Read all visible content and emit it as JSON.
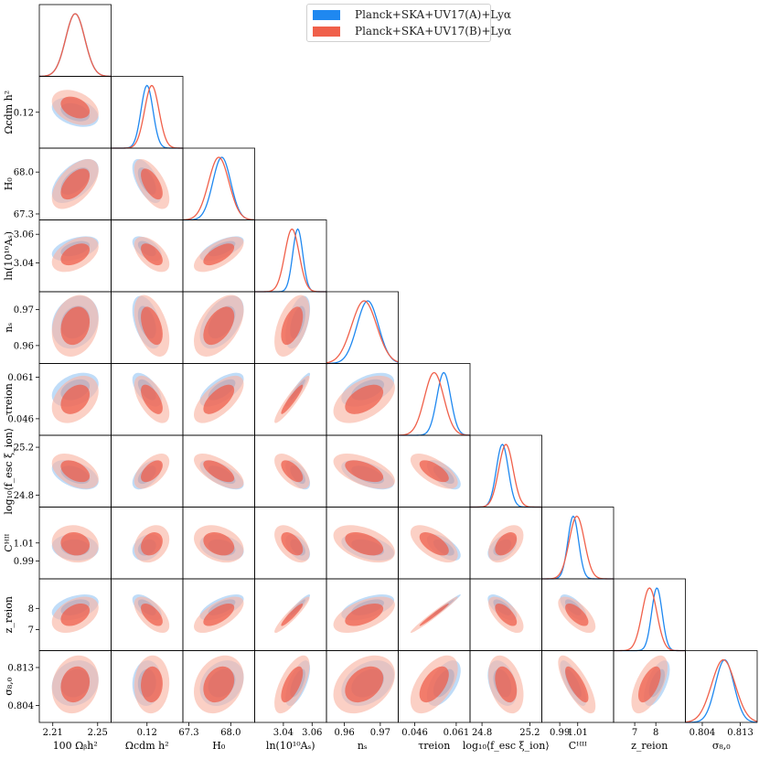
{
  "chart_data": {
    "type": "corner",
    "legend": {
      "placement": "top-center"
    },
    "series": [
      {
        "name": "Planck+SKA+UV17(A)+Lyα",
        "color": "#1f88f0",
        "fill_outer": "#a9d0f5",
        "fill_inner": "#5aa8f0"
      },
      {
        "name": "Planck+SKA+UV17(B)+Lyα",
        "color": "#f0604a",
        "fill_outer": "#f8b6a4",
        "fill_inner": "#ee5c48"
      }
    ],
    "parameters": [
      {
        "label": "100 Ωᵦh²",
        "axis_label": "100 Ω_b h²",
        "range": [
          2.198,
          2.262
        ],
        "ticks": [
          "2.21",
          "2.25"
        ],
        "tick_values": [
          2.21,
          2.25
        ],
        "mean": [
          2.23,
          2.23
        ],
        "sigma": [
          0.0085,
          0.0085
        ]
      },
      {
        "label": "Ωcdm h²",
        "axis_label": "Ω_cdm h²",
        "range": [
          0.1185,
          0.1215
        ],
        "ticks": [
          "0.12"
        ],
        "tick_values": [
          0.12
        ],
        "mean": [
          0.12,
          0.1202
        ],
        "sigma": [
          0.00025,
          0.0003
        ]
      },
      {
        "label": "H₀",
        "axis_label": "H_0",
        "range": [
          67.2,
          68.4
        ],
        "ticks": [
          "67.3",
          "68.0"
        ],
        "tick_values": [
          67.3,
          68.0
        ],
        "mean": [
          67.85,
          67.8
        ],
        "sigma": [
          0.15,
          0.17
        ]
      },
      {
        "label": "ln(10¹⁰Aₛ)",
        "axis_label": "ln(10^10 A_s)",
        "range": [
          3.02,
          3.07
        ],
        "ticks": [
          "3.04",
          "3.06"
        ],
        "tick_values": [
          3.04,
          3.06
        ],
        "mean": [
          3.05,
          3.046
        ],
        "sigma": [
          0.0035,
          0.005
        ]
      },
      {
        "label": "nₛ",
        "axis_label": "n_s",
        "range": [
          0.955,
          0.975
        ],
        "ticks": [
          "0.96",
          "0.97"
        ],
        "tick_values": [
          0.96,
          0.97
        ],
        "mean": [
          0.9665,
          0.9655
        ],
        "sigma": [
          0.003,
          0.0035
        ]
      },
      {
        "label": "τreion",
        "axis_label": "τ_reion",
        "range": [
          0.04,
          0.066
        ],
        "ticks": [
          "0.046",
          "0.061"
        ],
        "tick_values": [
          0.046,
          0.061
        ],
        "mean": [
          0.0565,
          0.053
        ],
        "sigma": [
          0.0025,
          0.0035
        ]
      },
      {
        "label": "log₁₀⟨f_esc ξ_ion⟩",
        "axis_label": "log10(f_esc ξ_ion)",
        "range": [
          24.7,
          25.3
        ],
        "ticks": [
          "24.8",
          "25.2"
        ],
        "tick_values": [
          24.8,
          25.2
        ],
        "mean": [
          24.97,
          25.0
        ],
        "sigma": [
          0.05,
          0.06
        ]
      },
      {
        "label": "Cᴴᴵᴵ",
        "axis_label": "C_HII",
        "range": [
          0.97,
          1.05
        ],
        "ticks": [
          "0.99",
          "1.01"
        ],
        "tick_values": [
          0.99,
          1.01
        ],
        "mean": [
          1.005,
          1.009
        ],
        "sigma": [
          0.006,
          0.0085
        ]
      },
      {
        "label": "z_reion",
        "axis_label": "z_reion",
        "range": [
          6.0,
          9.4
        ],
        "ticks": [
          "7",
          "8"
        ],
        "tick_values": [
          7,
          8
        ],
        "mean": [
          8.05,
          7.7
        ],
        "sigma": [
          0.25,
          0.35
        ]
      },
      {
        "label": "σ₈,₀",
        "axis_label": "σ_8,0",
        "range": [
          0.8,
          0.817
        ],
        "ticks": [
          "0.804",
          "0.813"
        ],
        "tick_values": [
          0.804,
          0.813
        ],
        "mean": [
          0.8093,
          0.809
        ],
        "sigma": [
          0.0022,
          0.0028
        ]
      }
    ],
    "diagonal_1d": [
      {
        "param": "100 Ω_b h²",
        "ymax": 1
      },
      {
        "param": "Ω_cdm h²",
        "ymax": 1
      }
    ],
    "off_diagonal_correlation": [
      [
        0.0,
        0.0,
        0.0,
        0.0,
        0.0,
        0.0,
        0.0,
        0.0,
        0.0
      ],
      [
        -0.35,
        0.0,
        0.0,
        0.0,
        0.0,
        0.0,
        0.0,
        0.0,
        0.0
      ],
      [
        0.55,
        -0.6,
        0.0,
        0.0,
        0.0,
        0.0,
        0.0,
        0.0,
        0.0
      ],
      [
        0.45,
        -0.55,
        0.65,
        0.0,
        0.0,
        0.0,
        0.0,
        0.0,
        0.0
      ],
      [
        0.2,
        -0.45,
        0.5,
        0.5,
        0.0,
        0.0,
        0.0,
        0.0,
        0.0
      ],
      [
        0.35,
        -0.6,
        0.65,
        0.93,
        0.5,
        0.0,
        0.0,
        0.0,
        0.0
      ],
      [
        -0.45,
        0.55,
        -0.65,
        -0.6,
        -0.55,
        -0.65,
        0.0,
        0.0,
        0.0
      ],
      [
        -0.1,
        0.25,
        -0.3,
        -0.5,
        -0.45,
        -0.6,
        0.45,
        0.0,
        0.0
      ],
      [
        0.4,
        -0.6,
        0.65,
        0.93,
        0.55,
        0.98,
        -0.65,
        -0.65,
        0.0
      ],
      [
        0.15,
        0.05,
        0.25,
        0.65,
        0.35,
        0.55,
        -0.35,
        -0.75,
        0.6
      ]
    ],
    "grid": false
  }
}
